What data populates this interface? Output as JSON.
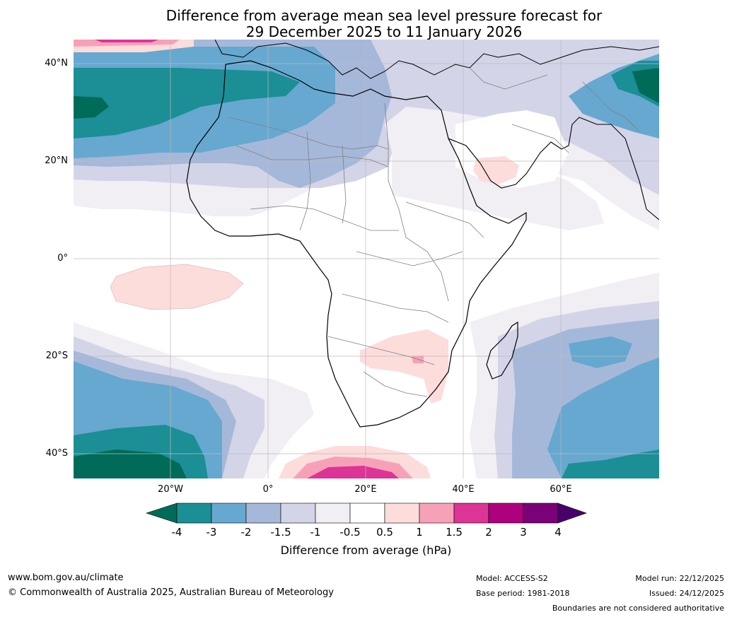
{
  "title_line1": "Difference from average mean sea level pressure forecast for",
  "title_line2": "29 December 2025 to 11 January 2026",
  "axes": {
    "lat_labels": [
      "40°N",
      "20°N",
      "0°",
      "20°S",
      "40°S"
    ],
    "lat_values": [
      40,
      20,
      0,
      -20,
      -40
    ],
    "lon_labels": [
      "20°W",
      "0°",
      "20°E",
      "40°E",
      "60°E"
    ],
    "lon_values": [
      -20,
      0,
      20,
      40,
      60
    ],
    "lon_range": [
      -40,
      80
    ],
    "lat_range": [
      -45,
      45
    ]
  },
  "colorbar": {
    "ticks": [
      "-4",
      "-3",
      "-2",
      "-1.5",
      "-1",
      "-0.5",
      "0.5",
      "1",
      "1.5",
      "2",
      "3",
      "4"
    ],
    "colors": [
      "#006b58",
      "#1c8e95",
      "#66a8d0",
      "#a6b8d9",
      "#d3d4e7",
      "#f1eef4",
      "#ffffff",
      "#fddcdc",
      "#f7a1b8",
      "#dd3497",
      "#ae017e",
      "#7a0177",
      "#49006a"
    ],
    "label": "Difference from average (hPa)"
  },
  "footer": {
    "website": "www.bom.gov.au/climate",
    "copyright": "© Commonwealth of Australia 2025, Australian Bureau of Meteorology",
    "model": "Model: ACCESS-S2",
    "base_period": "Base period: 1981-2018",
    "model_run": "Model run: 22/12/2025",
    "issued": "Issued: 24/12/2025",
    "disclaimer": "Boundaries are not considered authoritative"
  }
}
